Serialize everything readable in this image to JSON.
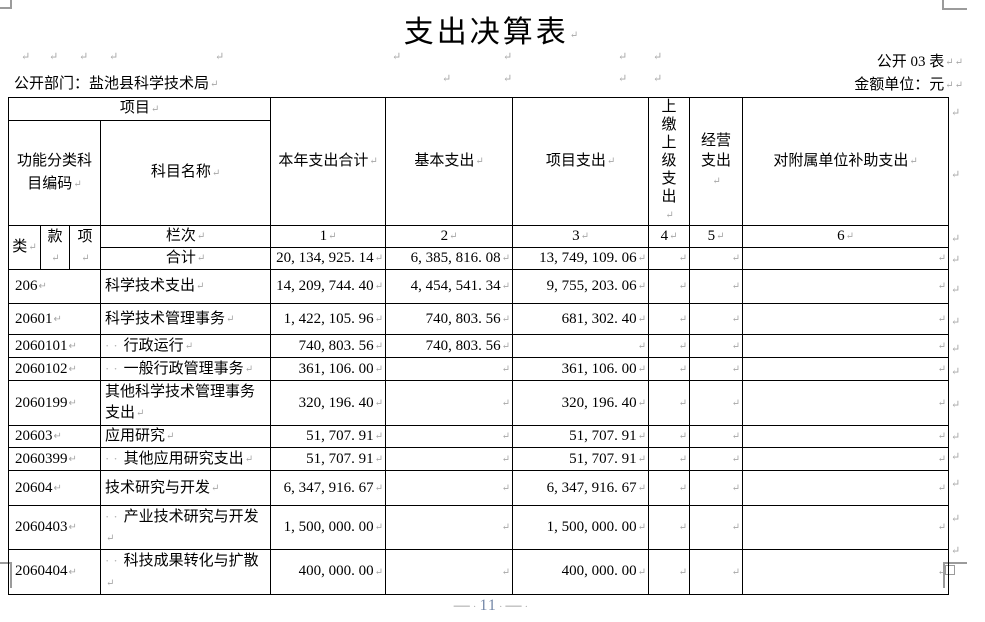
{
  "title": "支出决算表",
  "meta": {
    "table_code": "公开 03 表",
    "department_label": "公开部门：盐池县科学技术局",
    "unit_label": "金额单位：元"
  },
  "marks": {
    "pilcrow": "↵",
    "space_dots": "··",
    "space_dot": "·"
  },
  "footer": {
    "dash": "—",
    "page_number": "11"
  },
  "table": {
    "header": {
      "project": "项目",
      "func_code": "功能分类科目编码",
      "cat": "类",
      "section": "款",
      "item": "项",
      "subject_name": "科目名称",
      "total_expense": "本年支出合计",
      "basic_expense": "基本支出",
      "project_expense": "项目支出",
      "upper_expense": "上缴上级支出",
      "operating_expense": "经营支出",
      "subsidy_expense": "对附属单位补助支出",
      "column_row_label": "栏次",
      "column_numbers": [
        "1",
        "2",
        "3",
        "4",
        "5",
        "6"
      ]
    },
    "total_row": {
      "label": "合计",
      "values": [
        "20, 134, 925. 14",
        "6, 385, 816. 08",
        "13, 749, 109. 06",
        "",
        "",
        ""
      ]
    },
    "rows": [
      {
        "code": "206",
        "name": "科学技术支出",
        "indent": false,
        "values": [
          "14, 209, 744. 40",
          "4, 454, 541. 34",
          "9, 755, 203. 06",
          "",
          "",
          ""
        ]
      },
      {
        "code": "20601",
        "name": "科学技术管理事务",
        "indent": false,
        "values": [
          "1, 422, 105. 96",
          "740, 803. 56",
          "681, 302. 40",
          "",
          "",
          ""
        ]
      },
      {
        "code": "2060101",
        "name": "行政运行",
        "indent": true,
        "values": [
          "740, 803. 56",
          "740, 803. 56",
          "",
          "",
          "",
          ""
        ]
      },
      {
        "code": "2060102",
        "name": "一般行政管理事务",
        "indent": true,
        "values": [
          "361, 106. 00",
          "",
          "361, 106. 00",
          "",
          "",
          ""
        ]
      },
      {
        "code": "2060199",
        "name": "其他科学技术管理事务支出",
        "indent": false,
        "values": [
          "320, 196. 40",
          "",
          "320, 196. 40",
          "",
          "",
          ""
        ]
      },
      {
        "code": "20603",
        "name": "应用研究",
        "indent": false,
        "values": [
          "51, 707. 91",
          "",
          "51, 707. 91",
          "",
          "",
          ""
        ]
      },
      {
        "code": "2060399",
        "name": "其他应用研究支出",
        "indent": true,
        "values": [
          "51, 707. 91",
          "",
          "51, 707. 91",
          "",
          "",
          ""
        ]
      },
      {
        "code": "20604",
        "name": "技术研究与开发",
        "indent": false,
        "values": [
          "6, 347, 916. 67",
          "",
          "6, 347, 916. 67",
          "",
          "",
          ""
        ]
      },
      {
        "code": "2060403",
        "name": "产业技术研究与开发",
        "indent": true,
        "values": [
          "1, 500, 000. 00",
          "",
          "1, 500, 000. 00",
          "",
          "",
          ""
        ]
      },
      {
        "code": "2060404",
        "name": "科技成果转化与扩散",
        "indent": true,
        "values": [
          "400, 000. 00",
          "",
          "400, 000. 00",
          "",
          "",
          ""
        ]
      }
    ]
  }
}
